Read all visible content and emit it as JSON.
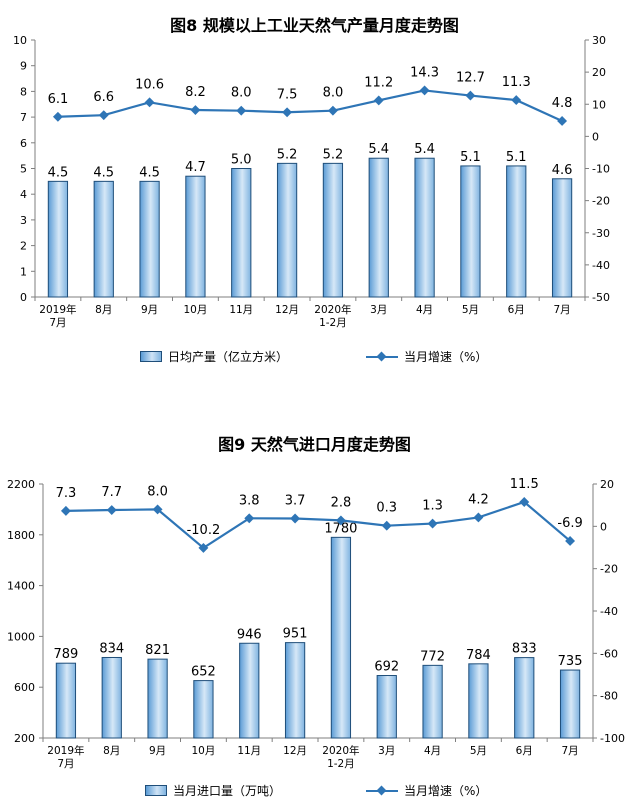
{
  "chart_data": [
    {
      "type": "bar",
      "title": "图8  规模以上工业天然气产量月度走势图",
      "categories": [
        [
          "2019年",
          "7月"
        ],
        [
          "8月"
        ],
        [
          "9月"
        ],
        [
          "10月"
        ],
        [
          "11月"
        ],
        [
          "12月"
        ],
        [
          "2020年",
          "1-2月"
        ],
        [
          "3月"
        ],
        [
          "4月"
        ],
        [
          "5月"
        ],
        [
          "6月"
        ],
        [
          "7月"
        ]
      ],
      "series": [
        {
          "name": "日均产量（亿立方米）",
          "type": "bar",
          "axis": "left",
          "values": [
            4.5,
            4.5,
            4.5,
            4.7,
            5.0,
            5.2,
            5.2,
            5.4,
            5.4,
            5.1,
            5.1,
            4.6
          ]
        },
        {
          "name": "当月增速（%）",
          "type": "line",
          "axis": "right",
          "values": [
            6.1,
            6.6,
            10.6,
            8.2,
            8.0,
            7.5,
            8.0,
            11.2,
            14.3,
            12.7,
            11.3,
            4.8
          ]
        }
      ],
      "bar_labels": [
        "4.5",
        "4.5",
        "4.5",
        "4.7",
        "5.0",
        "5.2",
        "5.2",
        "5.4",
        "5.4",
        "5.1",
        "5.1",
        "4.6"
      ],
      "line_labels": [
        "6.1",
        "6.6",
        "10.6",
        "8.2",
        "8.0",
        "7.5",
        "8.0",
        "11.2",
        "14.3",
        "12.7",
        "11.3",
        "4.8"
      ],
      "ylim": [
        0,
        10
      ],
      "yticks": [
        0,
        1,
        2,
        3,
        4,
        5,
        6,
        7,
        8,
        9,
        10
      ],
      "y2lim": [
        -50,
        30
      ],
      "y2ticks": [
        -50,
        -40,
        -30,
        -20,
        -10,
        0,
        10,
        20,
        30
      ],
      "grid": false,
      "legend_position": "bottom"
    },
    {
      "type": "bar",
      "title": "图9  天然气进口月度走势图",
      "categories": [
        [
          "2019年",
          "7月"
        ],
        [
          "8月"
        ],
        [
          "9月"
        ],
        [
          "10月"
        ],
        [
          "11月"
        ],
        [
          "12月"
        ],
        [
          "2020年",
          "1-2月"
        ],
        [
          "3月"
        ],
        [
          "4月"
        ],
        [
          "5月"
        ],
        [
          "6月"
        ],
        [
          "7月"
        ]
      ],
      "series": [
        {
          "name": "当月进口量（万吨）",
          "type": "bar",
          "axis": "left",
          "values": [
            789,
            834,
            821,
            652,
            946,
            951,
            1780,
            692,
            772,
            784,
            833,
            735
          ]
        },
        {
          "name": "当月增速（%）",
          "type": "line",
          "axis": "right",
          "values": [
            7.3,
            7.7,
            8.0,
            -10.2,
            3.8,
            3.7,
            2.8,
            0.3,
            1.3,
            4.2,
            11.5,
            -6.9
          ]
        }
      ],
      "bar_labels": [
        "789",
        "834",
        "821",
        "652",
        "946",
        "951",
        "1780",
        "692",
        "772",
        "784",
        "833",
        "735"
      ],
      "line_labels": [
        "7.3",
        "7.7",
        "8.0",
        "-10.2",
        "3.8",
        "3.7",
        "2.8",
        "0.3",
        "1.3",
        "4.2",
        "11.5",
        "-6.9"
      ],
      "ylim": [
        200,
        2200
      ],
      "yticks": [
        200,
        600,
        1000,
        1400,
        1800,
        2200
      ],
      "y2lim": [
        -100,
        20
      ],
      "y2ticks": [
        -100,
        -80,
        -60,
        -40,
        -20,
        0,
        20
      ],
      "grid": false,
      "legend_position": "bottom"
    }
  ],
  "colors": {
    "bar_fill_dark": "#5a9bd5",
    "bar_fill_light": "#d6e8f7",
    "bar_stroke": "#1f4e79",
    "line": "#2e75b6",
    "axis": "#7f7f7f"
  }
}
